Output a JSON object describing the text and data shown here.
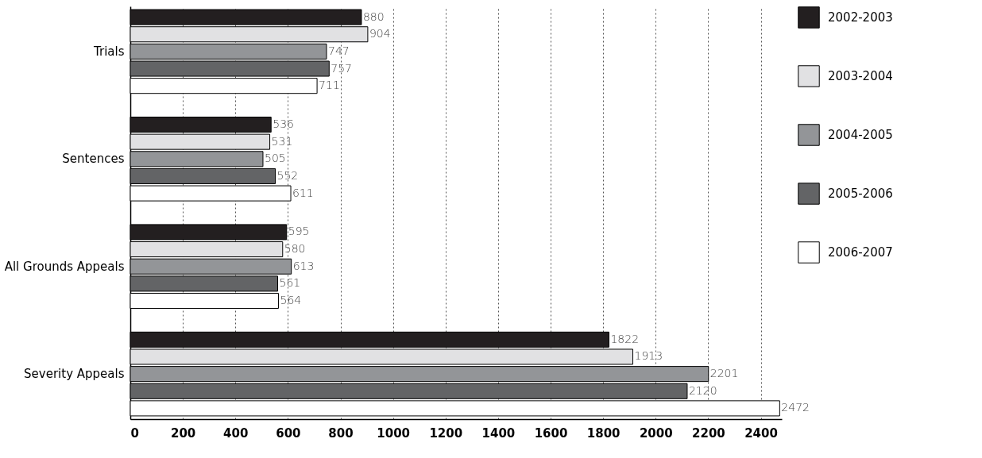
{
  "chart_data": {
    "type": "bar",
    "orientation": "horizontal",
    "categories": [
      "Trials",
      "Sentences",
      "All Grounds Appeals",
      "Severity Appeals"
    ],
    "series": [
      {
        "name": "2002-2003",
        "color": "#231f20",
        "values": [
          880,
          536,
          595,
          1822
        ]
      },
      {
        "name": "2003-2004",
        "color": "#e1e1e3",
        "values": [
          904,
          531,
          580,
          1913
        ]
      },
      {
        "name": "2004-2005",
        "color": "#939598",
        "values": [
          747,
          505,
          613,
          2201
        ]
      },
      {
        "name": "2005-2006",
        "color": "#636466",
        "values": [
          757,
          552,
          561,
          2120
        ]
      },
      {
        "name": "2006-2007",
        "color": "#ffffff",
        "values": [
          711,
          611,
          564,
          2472
        ]
      }
    ],
    "xlim": [
      0,
      2480
    ],
    "xticks": [
      0,
      200,
      400,
      600,
      800,
      1000,
      1200,
      1400,
      1600,
      1800,
      2000,
      2200,
      2400
    ],
    "grid": "x",
    "legend": "right",
    "data_labels": true
  }
}
